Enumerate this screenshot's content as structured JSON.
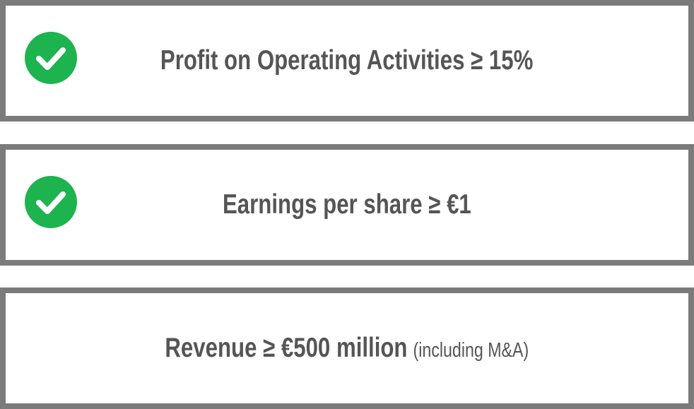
{
  "items": [
    {
      "text": "Profit on Operating Activities ≥ 15%",
      "checked": true
    },
    {
      "text": "Earnings per share ≥ €1",
      "checked": true
    },
    {
      "text": "Revenue ≥ €500 million",
      "note": "(including M&A)",
      "checked": false
    }
  ]
}
